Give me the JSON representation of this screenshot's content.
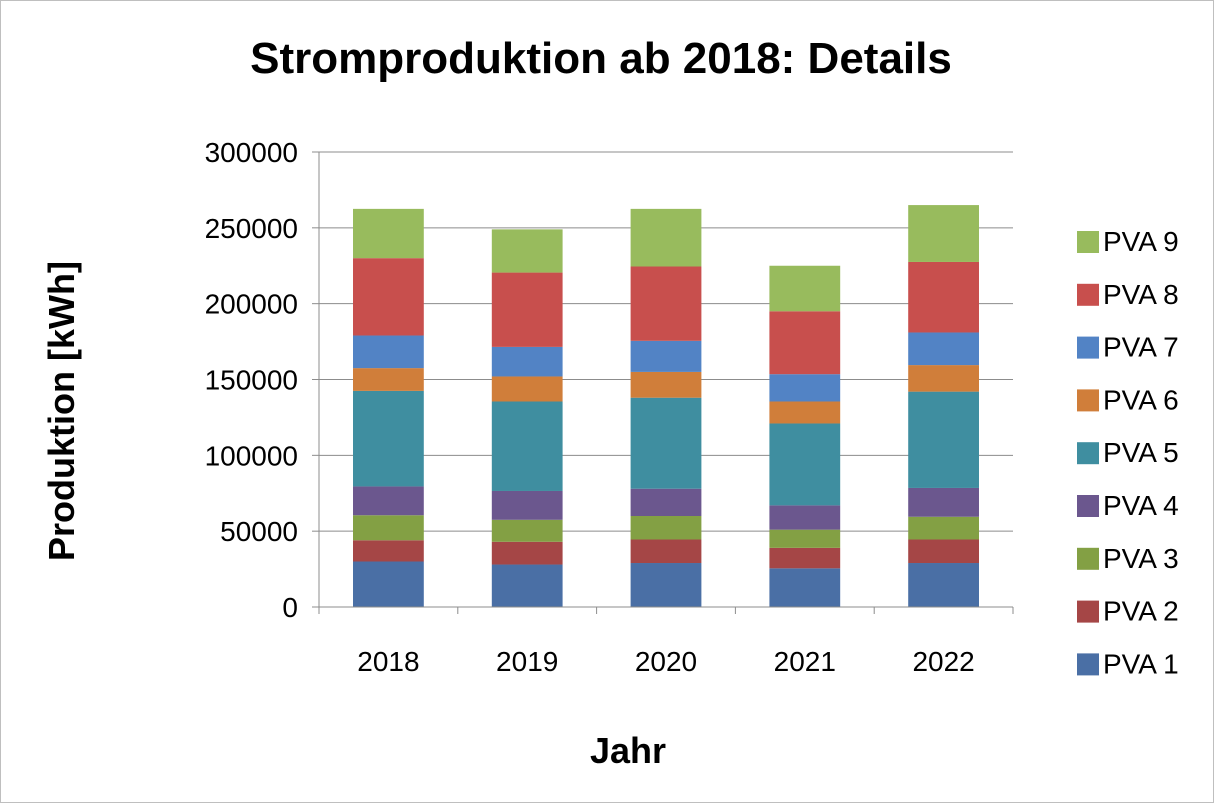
{
  "chart_data": {
    "type": "bar",
    "stacked": true,
    "title": "Stromproduktion ab 2018: Details",
    "xlabel": "Jahr",
    "ylabel": "Produktion [kWh]",
    "ylim": [
      0,
      300000
    ],
    "yticks": [
      0,
      50000,
      100000,
      150000,
      200000,
      250000,
      300000
    ],
    "grid": true,
    "legend_position": "right",
    "categories": [
      "2018",
      "2019",
      "2020",
      "2021",
      "2022"
    ],
    "series": [
      {
        "name": "PVA 1",
        "color": "#4a6fa5",
        "values": [
          30000,
          28000,
          29000,
          25500,
          29000
        ]
      },
      {
        "name": "PVA 2",
        "color": "#a54646",
        "values": [
          14000,
          15000,
          15500,
          13500,
          15500
        ]
      },
      {
        "name": "PVA 3",
        "color": "#83a044",
        "values": [
          16500,
          14500,
          15500,
          12000,
          15000
        ]
      },
      {
        "name": "PVA 4",
        "color": "#6b578e",
        "values": [
          19000,
          19000,
          18000,
          16000,
          19000
        ]
      },
      {
        "name": "PVA 5",
        "color": "#3f8ea0",
        "values": [
          63000,
          59000,
          60000,
          54000,
          63500
        ]
      },
      {
        "name": "PVA 6",
        "color": "#d07e3a",
        "values": [
          15000,
          16500,
          17000,
          14500,
          17500
        ]
      },
      {
        "name": "PVA 7",
        "color": "#5283c5",
        "values": [
          21500,
          19500,
          20500,
          18000,
          21500
        ]
      },
      {
        "name": "PVA 8",
        "color": "#c84f4d",
        "values": [
          51000,
          49000,
          49000,
          41500,
          46500
        ]
      },
      {
        "name": "PVA 9",
        "color": "#98bb5d",
        "values": [
          32500,
          28500,
          38000,
          30000,
          37500
        ]
      }
    ]
  }
}
